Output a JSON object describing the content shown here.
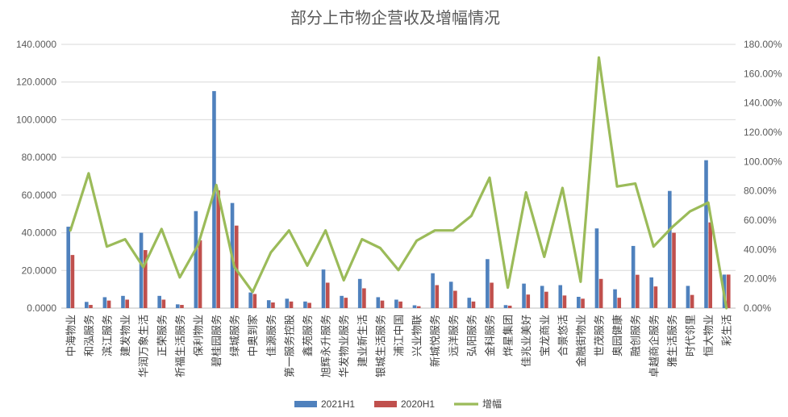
{
  "chart_data": {
    "type": "bar",
    "title": "部分上市物企营收及增幅情况",
    "categories": [
      "中海物业",
      "和泓服务",
      "滨江服务",
      "建发物业",
      "华润万象生活",
      "正荣服务",
      "祈福生活服务",
      "保利物业",
      "碧桂园服务",
      "绿城服务",
      "中奥到家",
      "佳源服务",
      "第一服务控股",
      "鑫苑服务",
      "旭辉永升服务",
      "华发物业服务",
      "建业新生活",
      "银城生活服务",
      "浦江中国",
      "兴业物联",
      "新城悦服务",
      "远洋服务",
      "弘阳服务",
      "金科服务",
      "烨星集团",
      "佳兆业美好",
      "宝龙商业",
      "合景悠活",
      "金融街物业",
      "世茂服务",
      "奥园健康",
      "融创服务",
      "卓越商企服务",
      "雅生活服务",
      "时代邻里",
      "恒大物业",
      "彩生活"
    ],
    "series": [
      {
        "name": "2021H1",
        "axis": "left",
        "color": "#4F81BD",
        "values": [
          43.2,
          3.3,
          5.8,
          6.5,
          40.0,
          6.5,
          2.0,
          51.5,
          115.2,
          55.8,
          8.3,
          4.2,
          5.0,
          3.5,
          20.5,
          6.5,
          15.5,
          5.8,
          4.5,
          1.5,
          18.5,
          14.0,
          5.5,
          26.0,
          1.6,
          13.0,
          11.8,
          12.2,
          6.0,
          42.3,
          10.0,
          33.0,
          16.3,
          62.2,
          11.8,
          78.5,
          17.8
        ]
      },
      {
        "name": "2020H1",
        "axis": "left",
        "color": "#C0504D",
        "values": [
          28.2,
          1.7,
          4.0,
          4.5,
          30.8,
          4.5,
          1.7,
          36.0,
          62.5,
          43.8,
          7.5,
          3.0,
          3.5,
          2.8,
          13.5,
          5.5,
          10.5,
          4.0,
          3.5,
          1.0,
          12.2,
          9.2,
          3.5,
          13.5,
          1.3,
          7.2,
          8.7,
          6.7,
          5.0,
          15.5,
          5.5,
          17.7,
          11.5,
          40.0,
          7.0,
          45.5,
          17.8
        ]
      },
      {
        "name": "增幅",
        "type": "line",
        "axis": "right",
        "color": "#9BBB59",
        "values": [
          53,
          92,
          42,
          47,
          28,
          54,
          21,
          43,
          84,
          28,
          11,
          38,
          53,
          29,
          53,
          19,
          47,
          41,
          26,
          46,
          53,
          53,
          63,
          89,
          14,
          79,
          35,
          82,
          18,
          171,
          83,
          85,
          42,
          55,
          66,
          72,
          0
        ]
      }
    ],
    "yleft": {
      "ylim": [
        0,
        140
      ],
      "ticks": [
        "0.0000",
        "20.0000",
        "40.0000",
        "60.0000",
        "80.0000",
        "100.0000",
        "120.0000",
        "140.0000"
      ]
    },
    "yright": {
      "ylim": [
        0,
        180
      ],
      "ticks": [
        "0.00%",
        "20.00%",
        "40.00%",
        "60.00%",
        "80.00%",
        "100.00%",
        "120.00%",
        "140.00%",
        "160.00%",
        "180.00%"
      ]
    },
    "grid": true,
    "legend": {
      "position": "bottom",
      "items": [
        "2021H1",
        "2020H1",
        "增幅"
      ]
    }
  }
}
